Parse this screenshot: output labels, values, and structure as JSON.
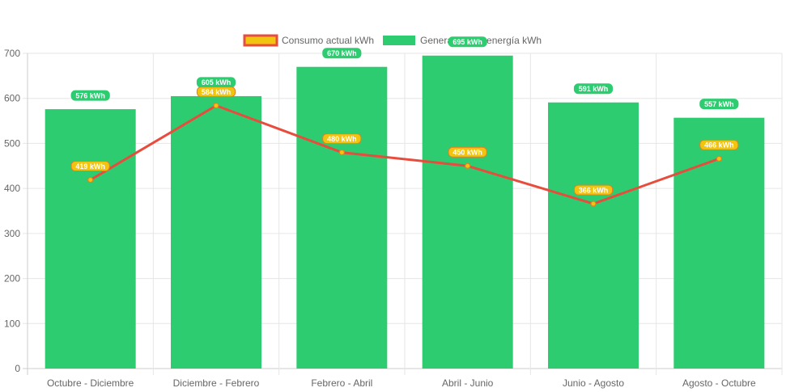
{
  "chart_data": {
    "type": "bar",
    "categories": [
      "Octubre - Diciembre",
      "Diciembre - Febrero",
      "Febrero - Abril",
      "Abril - Junio",
      "Junio - Agosto",
      "Agosto - Octubre"
    ],
    "ylim": [
      0,
      700
    ],
    "yticks": [
      "0",
      "100",
      "200",
      "300",
      "400",
      "500",
      "600",
      "700"
    ],
    "grid": true,
    "legend_position": "top-center",
    "series": [
      {
        "name": "Consumo actual kWh",
        "type": "line",
        "color": "#e74c3c",
        "legend_fill": "#f1c40f",
        "label_color": "#f1c40f",
        "label_border": "#e67e22",
        "values": [
          419,
          584,
          480,
          450,
          366,
          466
        ],
        "labels": [
          "419 kWh",
          "584 kWh",
          "480 kWh",
          "450 kWh",
          "366 kWh",
          "466 kWh"
        ]
      },
      {
        "name": "Generación de energía kWh",
        "type": "bar",
        "color": "#2ecc71",
        "label_color": "#2ecc71",
        "values": [
          576,
          605,
          670,
          695,
          591,
          557
        ],
        "labels": [
          "576 kWh",
          "605 kWh",
          "670 kWh",
          "695 kWh",
          "591 kWh",
          "557 kWh"
        ]
      }
    ]
  }
}
